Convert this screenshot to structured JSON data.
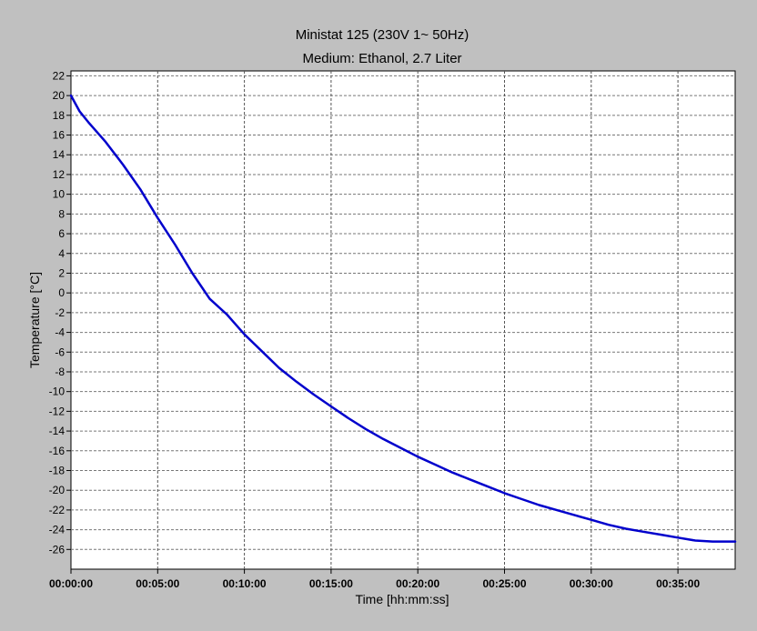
{
  "chart_data": {
    "type": "line",
    "title": "Ministat 125 (230V 1~ 50Hz)",
    "subtitle": "Medium: Ethanol, 2.7 Liter",
    "xlabel": "Time [hh:mm:ss]",
    "ylabel": "Temperature [°C]",
    "xlim_minutes": [
      0,
      38.3
    ],
    "ylim": [
      -28,
      22.5
    ],
    "yticks": [
      22,
      20,
      18,
      16,
      14,
      12,
      10,
      8,
      6,
      4,
      2,
      0,
      -2,
      -4,
      -6,
      -8,
      -10,
      -12,
      -14,
      -16,
      -18,
      -20,
      -22,
      -24,
      -26
    ],
    "xticks": [
      {
        "minutes": 0,
        "label": "00:00:00"
      },
      {
        "minutes": 5,
        "label": "00:05:00"
      },
      {
        "minutes": 10,
        "label": "00:10:00"
      },
      {
        "minutes": 15,
        "label": "00:15:00"
      },
      {
        "minutes": 20,
        "label": "00:20:00"
      },
      {
        "minutes": 25,
        "label": "00:25:00"
      },
      {
        "minutes": 30,
        "label": "00:30:00"
      },
      {
        "minutes": 35,
        "label": "00:35:00"
      }
    ],
    "grid": true,
    "legend": "none",
    "series": [
      {
        "color": "#0000cc",
        "x_minutes": [
          0,
          0.5,
          1,
          2,
          3,
          4,
          5,
          6,
          7,
          8,
          9,
          10,
          11,
          12,
          13,
          14,
          15,
          16,
          17,
          18,
          19,
          20,
          21,
          22,
          23,
          24,
          25,
          26,
          27,
          28,
          29,
          30,
          31,
          32,
          33,
          34,
          35,
          36,
          37,
          38.3
        ],
        "y": [
          20,
          18.4,
          17.3,
          15.3,
          13.0,
          10.5,
          7.6,
          4.9,
          2.0,
          -0.6,
          -2.2,
          -4.2,
          -5.9,
          -7.6,
          -9.0,
          -10.3,
          -11.5,
          -12.7,
          -13.8,
          -14.8,
          -15.7,
          -16.6,
          -17.4,
          -18.2,
          -18.9,
          -19.6,
          -20.3,
          -20.9,
          -21.5,
          -22.0,
          -22.5,
          -23.0,
          -23.5,
          -23.9,
          -24.2,
          -24.5,
          -24.8,
          -25.1,
          -25.2,
          -25.2
        ]
      }
    ]
  }
}
